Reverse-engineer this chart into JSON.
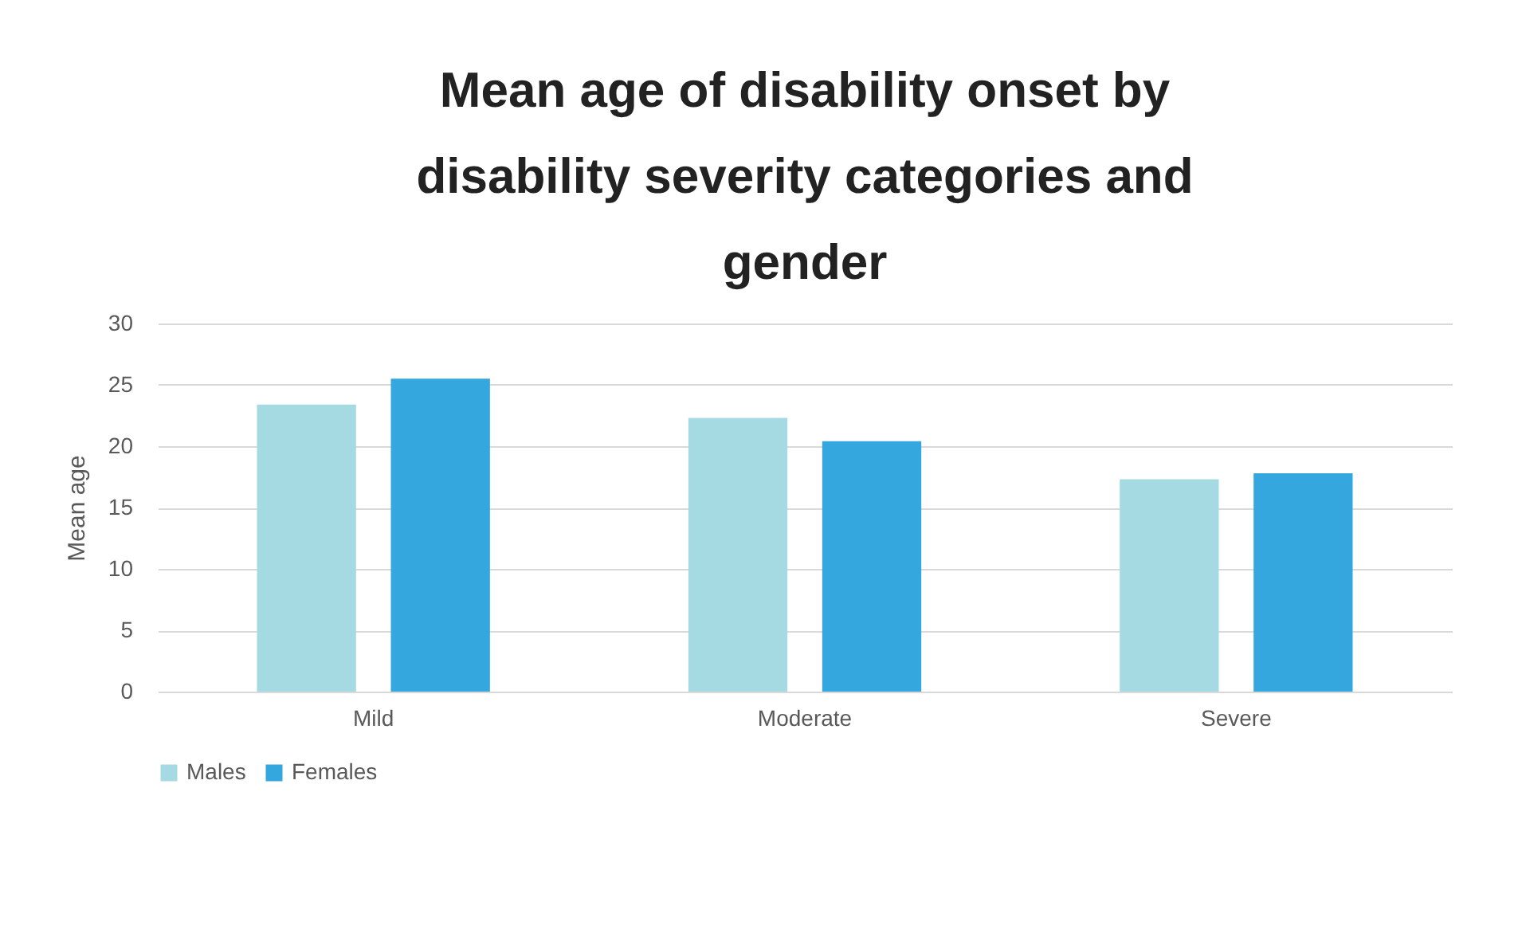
{
  "chart_data": {
    "type": "bar",
    "title": "Mean age of disability onset by disability severity categories and gender",
    "ylabel": "Mean age",
    "categories": [
      "Mild",
      "Moderate",
      "Severe"
    ],
    "series": [
      {
        "name": "Males",
        "color": "#a5dae3",
        "values": [
          23.4,
          22.3,
          17.3
        ]
      },
      {
        "name": "Females",
        "color": "#34a7de",
        "values": [
          25.5,
          20.4,
          17.8
        ]
      }
    ],
    "ylim": [
      0,
      30
    ],
    "yticks": [
      0,
      5,
      10,
      15,
      20,
      25,
      30
    ],
    "grid": "y",
    "legend": "bottom"
  }
}
